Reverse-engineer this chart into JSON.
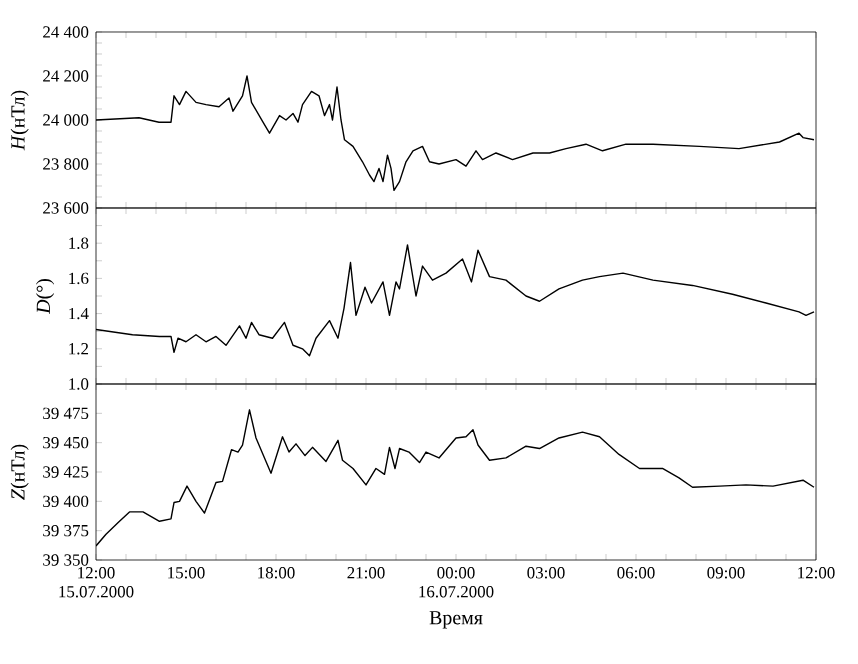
{
  "chart_data": [
    {
      "type": "line",
      "ylabel": "*H*(нТл)",
      "color": "#000000",
      "tick_labels": "y",
      "x": [
        "2000-07-15T12:00",
        "2000-07-15T13:26",
        "2000-07-15T14:06",
        "2000-07-15T14:30",
        "2000-07-15T14:36",
        "2000-07-15T14:47",
        "2000-07-15T15:00",
        "2000-07-15T15:20",
        "2000-07-15T15:40",
        "2000-07-15T16:06",
        "2000-07-15T16:26",
        "2000-07-15T16:34",
        "2000-07-15T16:53",
        "2000-07-15T17:02",
        "2000-07-15T17:11",
        "2000-07-15T17:34",
        "2000-07-15T17:47",
        "2000-07-15T18:07",
        "2000-07-15T18:20",
        "2000-07-15T18:34",
        "2000-07-15T18:44",
        "2000-07-15T18:53",
        "2000-07-15T19:11",
        "2000-07-15T19:26",
        "2000-07-15T19:37",
        "2000-07-15T19:47",
        "2000-07-15T19:53",
        "2000-07-15T20:02",
        "2000-07-15T20:10",
        "2000-07-15T20:17",
        "2000-07-15T20:34",
        "2000-07-15T20:53",
        "2000-07-15T21:07",
        "2000-07-15T21:16",
        "2000-07-15T21:26",
        "2000-07-15T21:34",
        "2000-07-15T21:43",
        "2000-07-15T21:50",
        "2000-07-15T21:56",
        "2000-07-15T22:07",
        "2000-07-15T22:20",
        "2000-07-15T22:34",
        "2000-07-15T22:53",
        "2000-07-15T23:07",
        "2000-07-15T23:26",
        "2000-07-16T00:00",
        "2000-07-16T00:20",
        "2000-07-16T00:40",
        "2000-07-16T00:53",
        "2000-07-16T01:20",
        "2000-07-16T01:53",
        "2000-07-16T02:34",
        "2000-07-16T03:07",
        "2000-07-16T03:40",
        "2000-07-16T04:20",
        "2000-07-16T04:53",
        "2000-07-16T05:40",
        "2000-07-16T06:34",
        "2000-07-16T08:07",
        "2000-07-16T09:26",
        "2000-07-16T10:47",
        "2000-07-16T11:26",
        "2000-07-16T11:34",
        "2000-07-16T11:56"
      ],
      "values": [
        24000,
        24010,
        23990,
        23990,
        24110,
        24070,
        24130,
        24080,
        24070,
        24060,
        24100,
        24040,
        24110,
        24200,
        24080,
        23990,
        23940,
        24020,
        24000,
        24030,
        23990,
        24070,
        24130,
        24110,
        24020,
        24070,
        24000,
        24150,
        24000,
        23910,
        23880,
        23810,
        23750,
        23720,
        23780,
        23720,
        23840,
        23780,
        23680,
        23720,
        23810,
        23860,
        23880,
        23810,
        23800,
        23820,
        23790,
        23860,
        23820,
        23850,
        23820,
        23850,
        23850,
        23870,
        23890,
        23860,
        23890,
        23890,
        23880,
        23870,
        23900,
        23940,
        23920,
        23910
      ],
      "xlim": [
        "2000-07-15T12:00",
        "2000-07-16T12:00"
      ],
      "xticks": [
        {
          "value": "2000-07-15T12:00",
          "label": null
        },
        {
          "value": "2000-07-15T13:00",
          "label": null
        },
        {
          "value": "2000-07-15T14:00",
          "label": null
        },
        {
          "value": "2000-07-15T15:00",
          "label": null
        },
        {
          "value": "2000-07-15T16:00",
          "label": null
        },
        {
          "value": "2000-07-15T17:00",
          "label": null
        },
        {
          "value": "2000-07-15T18:00",
          "label": null
        },
        {
          "value": "2000-07-15T19:00",
          "label": null
        },
        {
          "value": "2000-07-15T20:00",
          "label": null
        },
        {
          "value": "2000-07-15T21:00",
          "label": null
        },
        {
          "value": "2000-07-15T22:00",
          "label": null
        },
        {
          "value": "2000-07-15T23:00",
          "label": null
        },
        {
          "value": "2000-07-16T00:00",
          "label": null
        },
        {
          "value": "2000-07-16T01:00",
          "label": null
        },
        {
          "value": "2000-07-16T02:00",
          "label": null
        },
        {
          "value": "2000-07-16T03:00",
          "label": null
        },
        {
          "value": "2000-07-16T04:00",
          "label": null
        },
        {
          "value": "2000-07-16T05:00",
          "label": null
        },
        {
          "value": "2000-07-16T06:00",
          "label": null
        },
        {
          "value": "2000-07-16T07:00",
          "label": null
        },
        {
          "value": "2000-07-16T08:00",
          "label": null
        },
        {
          "value": "2000-07-16T09:00",
          "label": null
        },
        {
          "value": "2000-07-16T10:00",
          "label": null
        },
        {
          "value": "2000-07-16T11:00",
          "label": null
        },
        {
          "value": "2000-07-16T12:00",
          "label": null
        }
      ],
      "ylim": [
        23600,
        24400
      ],
      "yticks": [
        {
          "value": 23600,
          "label": "23 600"
        },
        {
          "value": 23650,
          "label": null
        },
        {
          "value": 23700,
          "label": null
        },
        {
          "value": 23750,
          "label": null
        },
        {
          "value": 23800,
          "label": "23 800"
        },
        {
          "value": 23850,
          "label": null
        },
        {
          "value": 23900,
          "label": null
        },
        {
          "value": 23950,
          "label": null
        },
        {
          "value": 24000,
          "label": "24 000"
        },
        {
          "value": 24050,
          "label": null
        },
        {
          "value": 24100,
          "label": null
        },
        {
          "value": 24150,
          "label": null
        },
        {
          "value": 24200,
          "label": "24 200"
        },
        {
          "value": 24250,
          "label": null
        },
        {
          "value": 24300,
          "label": null
        },
        {
          "value": 24350,
          "label": null
        },
        {
          "value": 24400,
          "label": "24 400"
        }
      ]
    },
    {
      "type": "line",
      "ylabel": "*D*(°)",
      "color": "#000000",
      "tick_labels": "y",
      "x": [
        "2000-07-15T12:00",
        "2000-07-15T13:13",
        "2000-07-15T14:07",
        "2000-07-15T14:30",
        "2000-07-15T14:36",
        "2000-07-15T14:44",
        "2000-07-15T15:00",
        "2000-07-15T15:20",
        "2000-07-15T15:40",
        "2000-07-15T16:00",
        "2000-07-15T16:20",
        "2000-07-15T16:47",
        "2000-07-15T17:00",
        "2000-07-15T17:11",
        "2000-07-15T17:26",
        "2000-07-15T17:53",
        "2000-07-15T18:17",
        "2000-07-15T18:34",
        "2000-07-15T18:53",
        "2000-07-15T19:07",
        "2000-07-15T19:20",
        "2000-07-15T19:47",
        "2000-07-15T20:04",
        "2000-07-15T20:16",
        "2000-07-15T20:29",
        "2000-07-15T20:40",
        "2000-07-15T20:58",
        "2000-07-15T21:11",
        "2000-07-15T21:34",
        "2000-07-15T21:47",
        "2000-07-15T22:00",
        "2000-07-15T22:07",
        "2000-07-15T22:23",
        "2000-07-15T22:40",
        "2000-07-15T22:53",
        "2000-07-15T23:13",
        "2000-07-15T23:40",
        "2000-07-16T00:13",
        "2000-07-16T00:31",
        "2000-07-16T00:44",
        "2000-07-16T01:07",
        "2000-07-16T01:40",
        "2000-07-16T02:20",
        "2000-07-16T02:47",
        "2000-07-16T03:26",
        "2000-07-16T04:13",
        "2000-07-16T04:47",
        "2000-07-16T05:34",
        "2000-07-16T06:34",
        "2000-07-16T07:53",
        "2000-07-16T09:13",
        "2000-07-16T10:20",
        "2000-07-16T11:26",
        "2000-07-16T11:40",
        "2000-07-16T11:56"
      ],
      "values": [
        1.31,
        1.28,
        1.27,
        1.27,
        1.18,
        1.26,
        1.24,
        1.28,
        1.24,
        1.27,
        1.22,
        1.33,
        1.26,
        1.35,
        1.28,
        1.26,
        1.35,
        1.22,
        1.2,
        1.16,
        1.26,
        1.36,
        1.26,
        1.43,
        1.69,
        1.39,
        1.55,
        1.46,
        1.58,
        1.39,
        1.58,
        1.54,
        1.79,
        1.5,
        1.67,
        1.59,
        1.63,
        1.71,
        1.58,
        1.76,
        1.61,
        1.59,
        1.5,
        1.47,
        1.54,
        1.59,
        1.61,
        1.63,
        1.59,
        1.56,
        1.51,
        1.46,
        1.41,
        1.39,
        1.41
      ],
      "xlim": [
        "2000-07-15T12:00",
        "2000-07-16T12:00"
      ],
      "xticks": [
        {
          "value": "2000-07-15T12:00",
          "label": null
        },
        {
          "value": "2000-07-15T13:00",
          "label": null
        },
        {
          "value": "2000-07-15T14:00",
          "label": null
        },
        {
          "value": "2000-07-15T15:00",
          "label": null
        },
        {
          "value": "2000-07-15T16:00",
          "label": null
        },
        {
          "value": "2000-07-15T17:00",
          "label": null
        },
        {
          "value": "2000-07-15T18:00",
          "label": null
        },
        {
          "value": "2000-07-15T19:00",
          "label": null
        },
        {
          "value": "2000-07-15T20:00",
          "label": null
        },
        {
          "value": "2000-07-15T21:00",
          "label": null
        },
        {
          "value": "2000-07-15T22:00",
          "label": null
        },
        {
          "value": "2000-07-15T23:00",
          "label": null
        },
        {
          "value": "2000-07-16T00:00",
          "label": null
        },
        {
          "value": "2000-07-16T01:00",
          "label": null
        },
        {
          "value": "2000-07-16T02:00",
          "label": null
        },
        {
          "value": "2000-07-16T03:00",
          "label": null
        },
        {
          "value": "2000-07-16T04:00",
          "label": null
        },
        {
          "value": "2000-07-16T05:00",
          "label": null
        },
        {
          "value": "2000-07-16T06:00",
          "label": null
        },
        {
          "value": "2000-07-16T07:00",
          "label": null
        },
        {
          "value": "2000-07-16T08:00",
          "label": null
        },
        {
          "value": "2000-07-16T09:00",
          "label": null
        },
        {
          "value": "2000-07-16T10:00",
          "label": null
        },
        {
          "value": "2000-07-16T11:00",
          "label": null
        },
        {
          "value": "2000-07-16T12:00",
          "label": null
        }
      ],
      "ylim": [
        1.0,
        2.0
      ],
      "yticks": [
        {
          "value": 1.0,
          "label": "1.0"
        },
        {
          "value": 1.1,
          "label": null
        },
        {
          "value": 1.2,
          "label": "1.2"
        },
        {
          "value": 1.3,
          "label": null
        },
        {
          "value": 1.4,
          "label": "1.4"
        },
        {
          "value": 1.5,
          "label": null
        },
        {
          "value": 1.6,
          "label": "1.6"
        },
        {
          "value": 1.7,
          "label": null
        },
        {
          "value": 1.8,
          "label": "1.8"
        },
        {
          "value": 1.9,
          "label": null
        },
        {
          "value": 2.0,
          "label": null
        }
      ]
    },
    {
      "type": "line",
      "ylabel": "*Z*(нТл)",
      "xlabel": "Время",
      "color": "#000000",
      "x": [
        "2000-07-15T12:00",
        "2000-07-15T12:20",
        "2000-07-15T12:47",
        "2000-07-15T13:07",
        "2000-07-15T13:34",
        "2000-07-15T14:07",
        "2000-07-15T14:30",
        "2000-07-15T14:36",
        "2000-07-15T14:47",
        "2000-07-15T15:02",
        "2000-07-15T15:20",
        "2000-07-15T15:37",
        "2000-07-15T16:00",
        "2000-07-15T16:13",
        "2000-07-15T16:31",
        "2000-07-15T16:44",
        "2000-07-15T16:53",
        "2000-07-15T17:07",
        "2000-07-15T17:20",
        "2000-07-15T17:37",
        "2000-07-15T17:50",
        "2000-07-15T18:13",
        "2000-07-15T18:26",
        "2000-07-15T18:40",
        "2000-07-15T18:58",
        "2000-07-15T19:13",
        "2000-07-15T19:40",
        "2000-07-15T20:04",
        "2000-07-15T20:13",
        "2000-07-15T20:34",
        "2000-07-15T21:00",
        "2000-07-15T21:20",
        "2000-07-15T21:37",
        "2000-07-15T21:47",
        "2000-07-15T21:58",
        "2000-07-15T22:07",
        "2000-07-15T22:26",
        "2000-07-15T22:47",
        "2000-07-15T23:00",
        "2000-07-15T23:26",
        "2000-07-16T00:00",
        "2000-07-16T00:20",
        "2000-07-16T00:34",
        "2000-07-16T00:44",
        "2000-07-16T01:07",
        "2000-07-16T01:40",
        "2000-07-16T02:20",
        "2000-07-16T02:47",
        "2000-07-16T03:26",
        "2000-07-16T04:13",
        "2000-07-16T04:47",
        "2000-07-16T05:26",
        "2000-07-16T06:07",
        "2000-07-16T06:53",
        "2000-07-16T07:26",
        "2000-07-16T07:53",
        "2000-07-16T08:47",
        "2000-07-16T09:40",
        "2000-07-16T10:34",
        "2000-07-16T11:34",
        "2000-07-16T11:56"
      ],
      "values": [
        39362,
        39372,
        39383,
        39391,
        39391,
        39383,
        39385,
        39399,
        39400,
        39413,
        39400,
        39390,
        39416,
        39417,
        39444,
        39442,
        39448,
        39478,
        39454,
        39437,
        39424,
        39455,
        39442,
        39449,
        39439,
        39446,
        39434,
        39452,
        39435,
        39428,
        39414,
        39428,
        39423,
        39446,
        39428,
        39445,
        39442,
        39433,
        39442,
        39437,
        39454,
        39455,
        39461,
        39448,
        39435,
        39437,
        39447,
        39445,
        39454,
        39459,
        39455,
        39440,
        39428,
        39428,
        39420,
        39412,
        39413,
        39414,
        39413,
        39418,
        39412
      ],
      "xlim": [
        "2000-07-15T12:00",
        "2000-07-16T12:00"
      ],
      "xticks": [
        {
          "value": "2000-07-15T12:00",
          "label": "12:00 15.07.2000"
        },
        {
          "value": "2000-07-15T13:00",
          "label": null
        },
        {
          "value": "2000-07-15T14:00",
          "label": null
        },
        {
          "value": "2000-07-15T15:00",
          "label": "15:00"
        },
        {
          "value": "2000-07-15T16:00",
          "label": null
        },
        {
          "value": "2000-07-15T17:00",
          "label": null
        },
        {
          "value": "2000-07-15T18:00",
          "label": "18:00"
        },
        {
          "value": "2000-07-15T19:00",
          "label": null
        },
        {
          "value": "2000-07-15T20:00",
          "label": null
        },
        {
          "value": "2000-07-15T21:00",
          "label": "21:00"
        },
        {
          "value": "2000-07-15T22:00",
          "label": null
        },
        {
          "value": "2000-07-15T23:00",
          "label": null
        },
        {
          "value": "2000-07-16T00:00",
          "label": "00:00 16.07.2000"
        },
        {
          "value": "2000-07-16T01:00",
          "label": null
        },
        {
          "value": "2000-07-16T02:00",
          "label": null
        },
        {
          "value": "2000-07-16T03:00",
          "label": "03:00"
        },
        {
          "value": "2000-07-16T04:00",
          "label": null
        },
        {
          "value": "2000-07-16T05:00",
          "label": null
        },
        {
          "value": "2000-07-16T06:00",
          "label": "06:00"
        },
        {
          "value": "2000-07-16T07:00",
          "label": null
        },
        {
          "value": "2000-07-16T08:00",
          "label": null
        },
        {
          "value": "2000-07-16T09:00",
          "label": "09:00"
        },
        {
          "value": "2000-07-16T10:00",
          "label": null
        },
        {
          "value": "2000-07-16T11:00",
          "label": null
        },
        {
          "value": "2000-07-16T12:00",
          "label": "12:00"
        }
      ],
      "ylim": [
        39350,
        39500
      ],
      "yticks": [
        {
          "value": 39350,
          "label": "39 350"
        },
        {
          "value": 39375,
          "label": "39 375"
        },
        {
          "value": 39400,
          "label": "39 400"
        },
        {
          "value": 39425,
          "label": "39 425"
        },
        {
          "value": 39450,
          "label": "39 450"
        },
        {
          "value": 39475,
          "label": "39 475"
        },
        {
          "value": 39500,
          "label": null
        }
      ]
    }
  ]
}
